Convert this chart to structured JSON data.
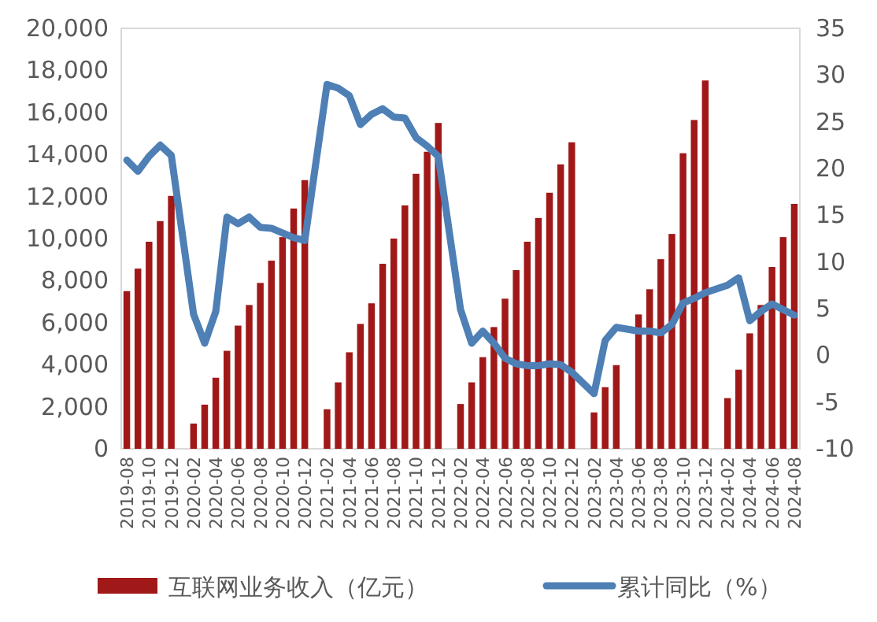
{
  "chart_data": {
    "type": "bar",
    "categories": [
      "2019-08",
      null,
      "2019-10",
      null,
      "2019-12",
      null,
      "2020-02",
      null,
      "2020-04",
      null,
      "2020-06",
      null,
      "2020-08",
      null,
      "2020-10",
      null,
      "2020-12",
      null,
      "2021-02",
      null,
      "2021-04",
      null,
      "2021-06",
      null,
      "2021-08",
      null,
      "2021-10",
      null,
      "2021-12",
      null,
      "2022-02",
      null,
      "2022-04",
      null,
      "2022-06",
      null,
      "2022-08",
      null,
      "2022-10",
      null,
      "2022-12",
      null,
      "2023-02",
      null,
      "2023-04",
      null,
      "2023-06",
      null,
      "2023-08",
      null,
      "2023-10",
      null,
      "2023-12",
      null,
      "2024-02",
      null,
      "2024-04",
      null,
      "2024-06",
      null,
      "2024-08"
    ],
    "series": [
      {
        "name": "互联网业务收入（亿元）",
        "color": "#a01818",
        "values": [
          7500,
          8570,
          9850,
          10830,
          12030,
          null,
          1200,
          2100,
          3380,
          4660,
          5860,
          6840,
          7890,
          8950,
          10070,
          11430,
          12780,
          null,
          1880,
          3160,
          4590,
          5940,
          6920,
          8800,
          10000,
          11580,
          13080,
          14130,
          15500,
          null,
          2130,
          3160,
          4360,
          5790,
          7140,
          8500,
          9850,
          10980,
          12180,
          13530,
          14580,
          null,
          1730,
          2930,
          3980,
          null,
          6390,
          7590,
          9020,
          10220,
          14060,
          15640,
          17520,
          null,
          2410,
          3760,
          5490,
          6840,
          8650,
          10070,
          11650
        ]
      },
      {
        "name": "累计同比（%）",
        "type": "line",
        "axis": "y2",
        "color": "#4e7fb5",
        "values": [
          20.9,
          19.7,
          21.3,
          22.5,
          21.4,
          null,
          4.4,
          1.3,
          4.7,
          14.8,
          14.1,
          14.8,
          13.7,
          13.6,
          13.1,
          12.6,
          12.3,
          null,
          29.0,
          28.6,
          27.8,
          24.7,
          25.8,
          26.4,
          25.5,
          25.4,
          23.3,
          22.4,
          21.3,
          null,
          4.9,
          1.3,
          2.6,
          1.3,
          -0.3,
          -0.9,
          -1.1,
          -1.1,
          -0.9,
          -1.0,
          -1.8,
          null,
          -4.1,
          1.6,
          3.0,
          null,
          2.6,
          2.6,
          2.4,
          3.3,
          5.6,
          6.1,
          6.7,
          null,
          7.5,
          8.3,
          3.7,
          4.7,
          5.5,
          4.9,
          4.3
        ]
      }
    ],
    "ylim": [
      0,
      20000
    ],
    "yticks": [
      {
        "value": 0,
        "label": "0"
      },
      {
        "value": 2000,
        "label": "2,000"
      },
      {
        "value": 4000,
        "label": "4,000"
      },
      {
        "value": 6000,
        "label": "6,000"
      },
      {
        "value": 8000,
        "label": "8,000"
      },
      {
        "value": 10000,
        "label": "10,000"
      },
      {
        "value": 12000,
        "label": "12,000"
      },
      {
        "value": 14000,
        "label": "14,000"
      },
      {
        "value": 16000,
        "label": "16,000"
      },
      {
        "value": 18000,
        "label": "18,000"
      },
      {
        "value": 20000,
        "label": "20,000"
      }
    ],
    "y2lim": [
      -10,
      35
    ],
    "y2ticks": [
      -10,
      -5,
      0,
      5,
      10,
      15,
      20,
      25,
      30,
      35
    ],
    "legend": "bottom"
  }
}
